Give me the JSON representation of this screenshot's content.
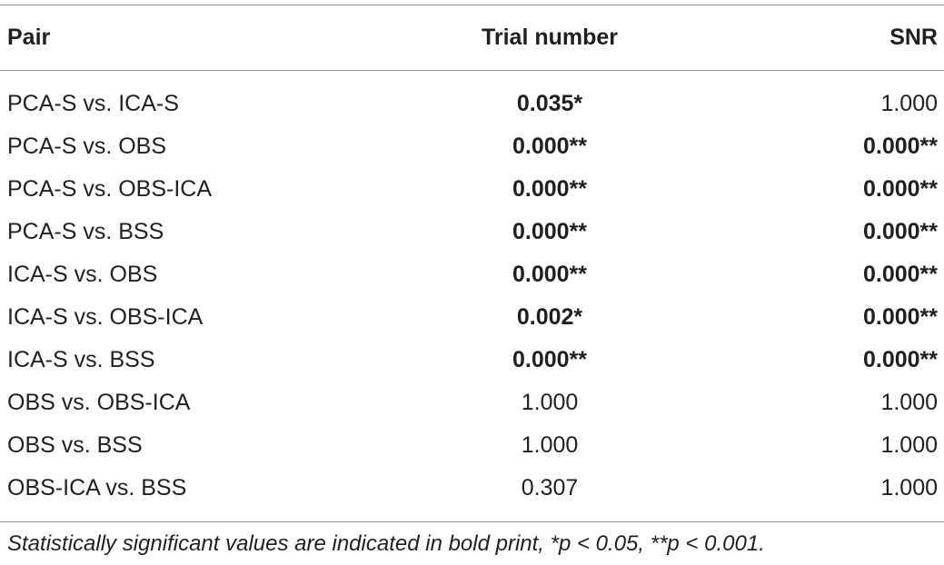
{
  "table": {
    "header": [
      "Pair",
      "Trial number",
      "SNR"
    ],
    "rows": [
      [
        "PCA-S vs. ICA-S",
        "0.035*",
        "1.000"
      ],
      [
        "PCA-S vs. OBS",
        "0.000**",
        "0.000**"
      ],
      [
        "PCA-S vs. OBS-ICA",
        "0.000**",
        "0.000**"
      ],
      [
        "PCA-S vs. BSS",
        "0.000**",
        "0.000**"
      ],
      [
        "ICA-S vs. OBS",
        "0.000**",
        "0.000**"
      ],
      [
        "ICA-S vs. OBS-ICA",
        "0.002*",
        "0.000**"
      ],
      [
        "ICA-S vs. BSS",
        "0.000**",
        "0.000**"
      ],
      [
        "OBS vs. OBS-ICA",
        "1.000",
        "1.000"
      ],
      [
        "OBS vs. BSS",
        "1.000",
        "1.000"
      ],
      [
        "OBS-ICA vs. BSS",
        "0.307",
        "1.000"
      ]
    ],
    "footnote": "Statistically significant values are indicated in bold print, *p < 0.05, **p < 0.001."
  }
}
